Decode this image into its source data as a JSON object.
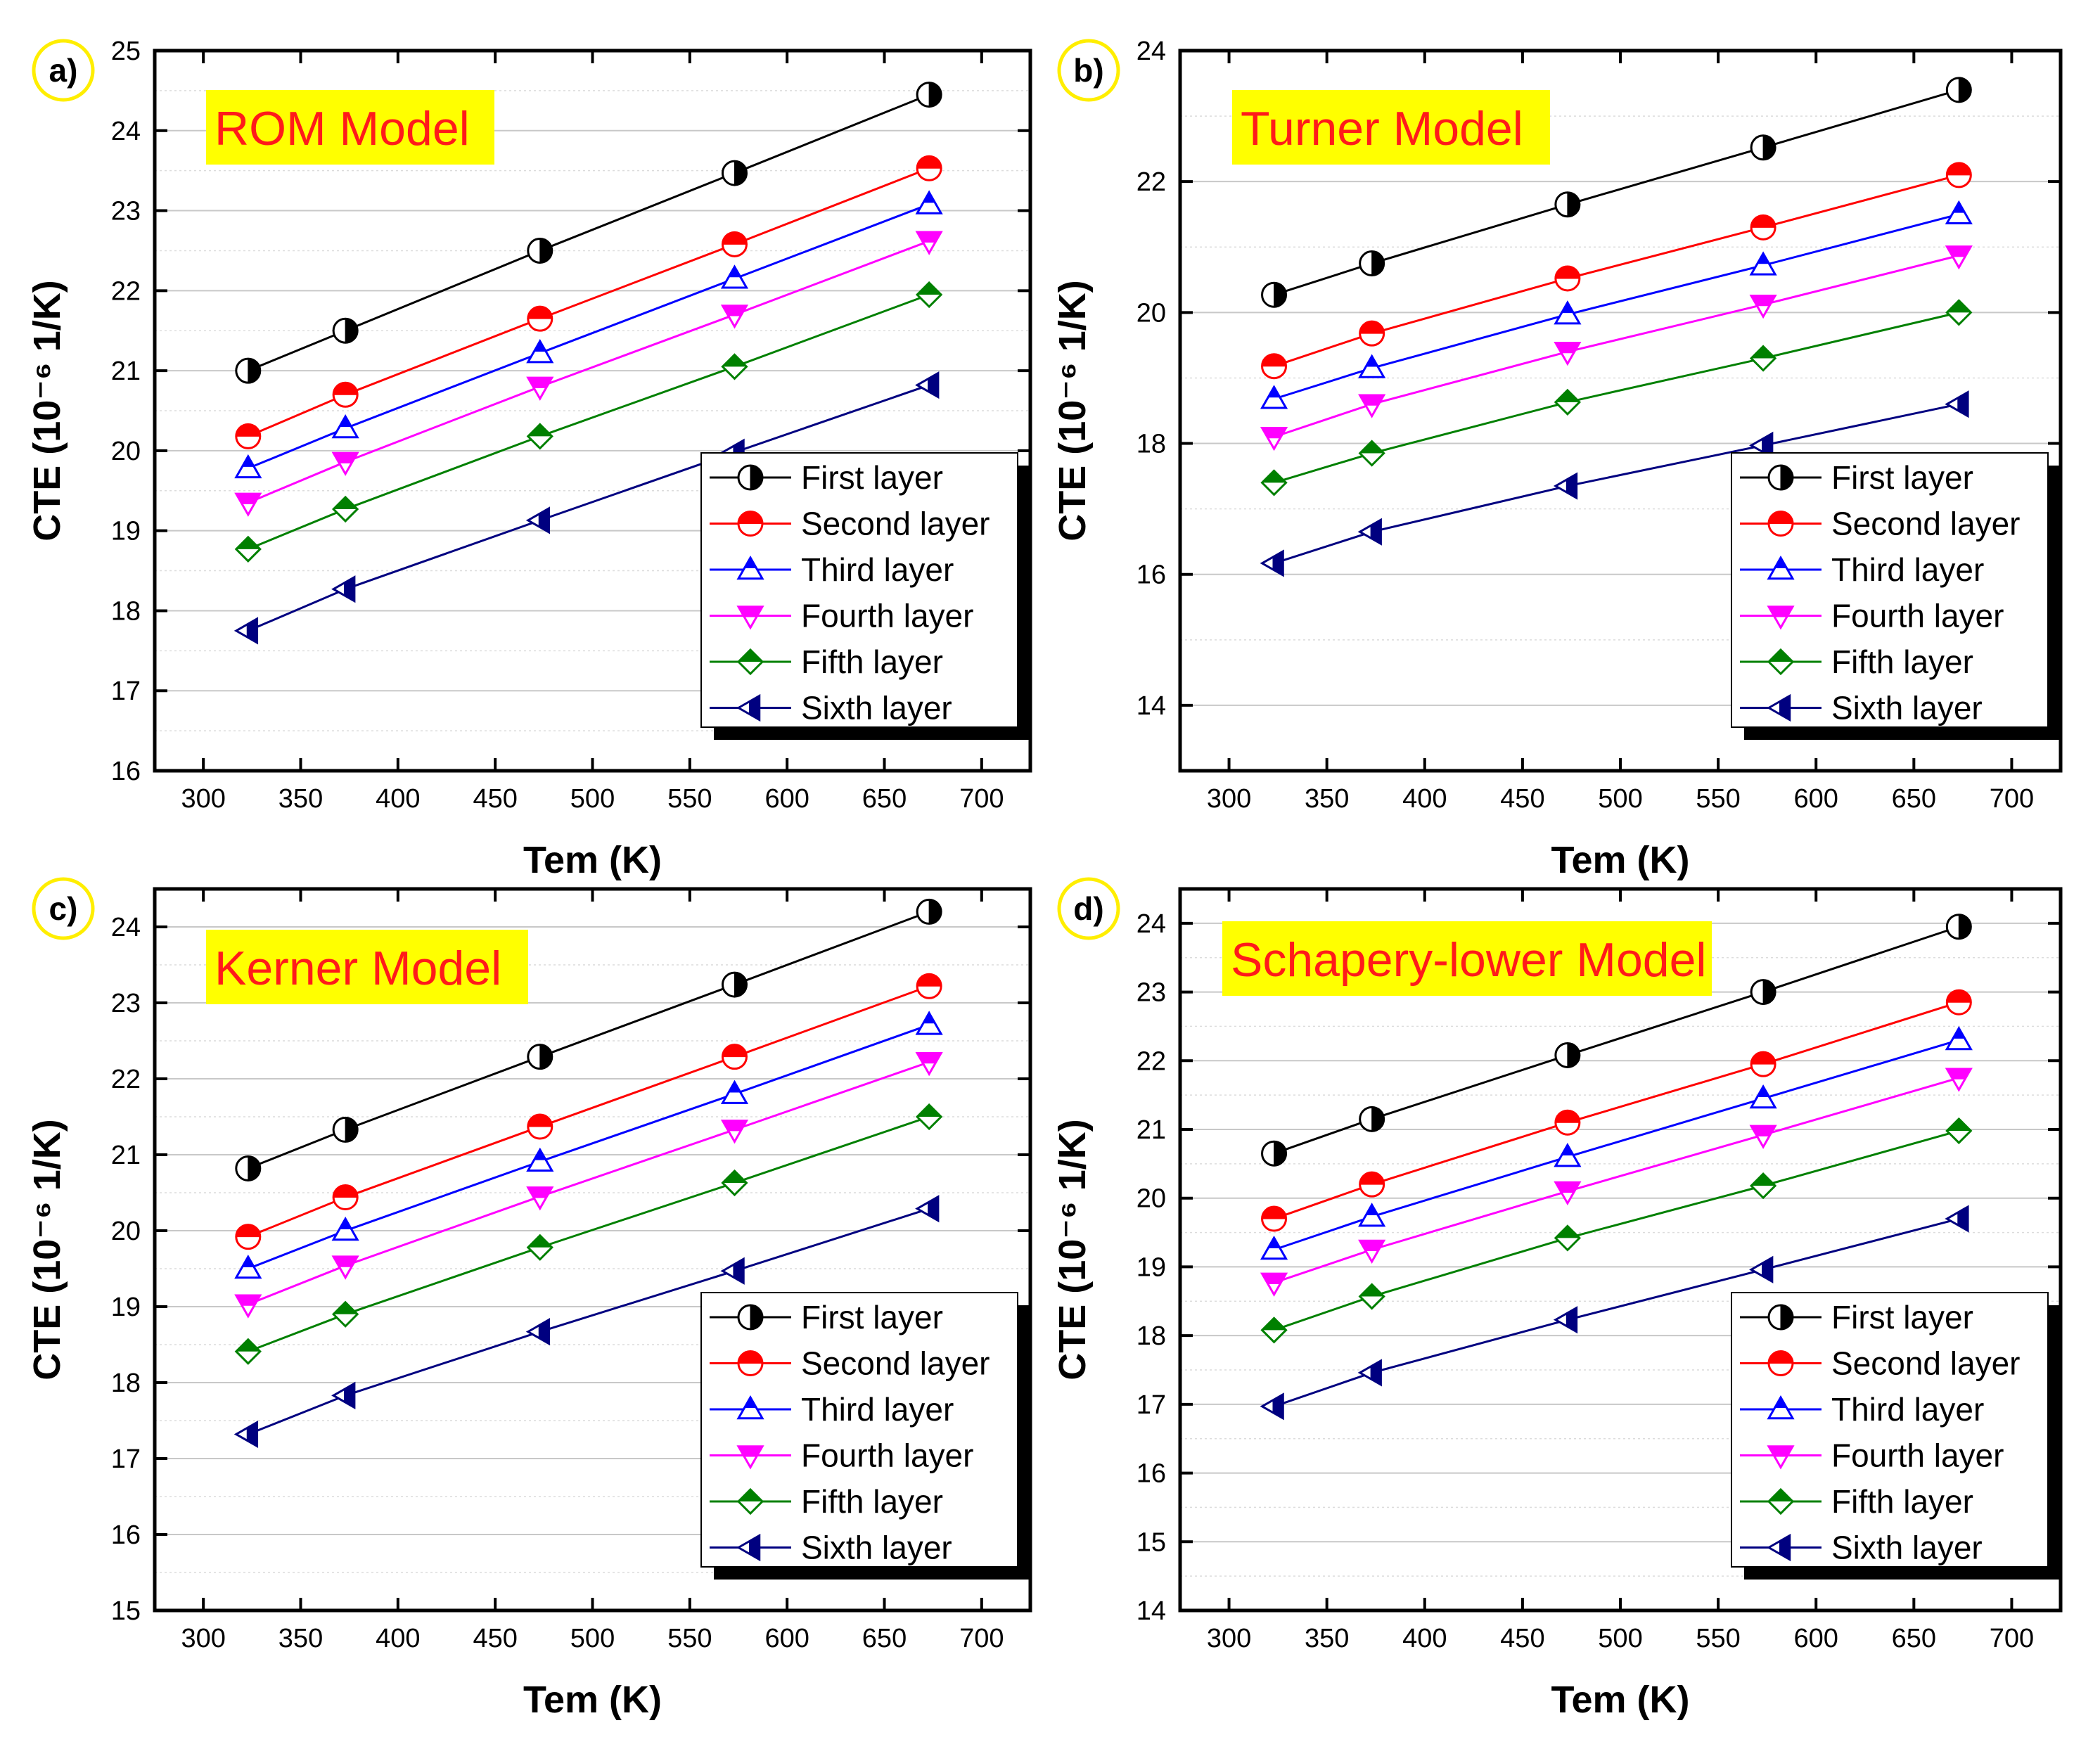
{
  "colors": {
    "First layer": "#000000",
    "Second layer": "#ff0000",
    "Third layer": "#0000ff",
    "Fourth layer": "#ff00ff",
    "Fifth layer": "#008000",
    "Sixth layer": "#000080",
    "title_bg": "#ffff00",
    "title_text": "#ff1a1a",
    "label_ring": "#ffee00",
    "grid": "#c8c8c8"
  },
  "chart_data": [
    {
      "type": "line",
      "panel_label": "a)",
      "title": "ROM Model",
      "xlabel": "Tem (K)",
      "ylabel": "CTE (10⁻⁶ 1/K)",
      "xlim": [
        275,
        725
      ],
      "ylim": [
        16,
        25
      ],
      "xticks": [
        300,
        350,
        400,
        450,
        500,
        550,
        600,
        650,
        700
      ],
      "yticks": [
        16,
        17,
        18,
        19,
        20,
        21,
        22,
        23,
        24,
        25
      ],
      "x": [
        323,
        373,
        473,
        573,
        673
      ],
      "legend_position": "bottom-right",
      "series": [
        {
          "name": "First layer",
          "marker": "half-circle-right",
          "values": [
            21.0,
            21.5,
            22.5,
            23.47,
            24.45
          ]
        },
        {
          "name": "Second layer",
          "marker": "half-circle-top",
          "values": [
            20.18,
            20.7,
            21.65,
            22.58,
            23.53
          ]
        },
        {
          "name": "Third layer",
          "marker": "triangle-up",
          "values": [
            19.78,
            20.28,
            21.22,
            22.15,
            23.08
          ]
        },
        {
          "name": "Fourth layer",
          "marker": "triangle-down",
          "values": [
            19.35,
            19.86,
            20.8,
            21.7,
            22.62
          ]
        },
        {
          "name": "Fifth layer",
          "marker": "diamond",
          "values": [
            18.77,
            19.27,
            20.18,
            21.05,
            21.95
          ]
        },
        {
          "name": "Sixth layer",
          "marker": "triangle-left",
          "values": [
            17.75,
            18.27,
            19.13,
            19.98,
            20.82
          ]
        }
      ]
    },
    {
      "type": "line",
      "panel_label": "b)",
      "title": "Turner Model",
      "xlabel": "Tem (K)",
      "ylabel": "CTE (10⁻⁶ 1/K)",
      "xlim": [
        275,
        725
      ],
      "ylim": [
        13,
        24
      ],
      "xticks": [
        300,
        350,
        400,
        450,
        500,
        550,
        600,
        650,
        700
      ],
      "yticks": [
        14,
        16,
        18,
        20,
        22,
        24
      ],
      "x": [
        323,
        373,
        473,
        573,
        673
      ],
      "legend_position": "bottom-right",
      "series": [
        {
          "name": "First layer",
          "marker": "half-circle-right",
          "values": [
            20.27,
            20.75,
            21.65,
            22.52,
            23.4
          ]
        },
        {
          "name": "Second layer",
          "marker": "half-circle-top",
          "values": [
            19.18,
            19.68,
            20.52,
            21.3,
            22.1
          ]
        },
        {
          "name": "Third layer",
          "marker": "triangle-up",
          "values": [
            18.68,
            19.15,
            19.97,
            20.72,
            21.5
          ]
        },
        {
          "name": "Fourth layer",
          "marker": "triangle-down",
          "values": [
            18.1,
            18.6,
            19.4,
            20.12,
            20.87
          ]
        },
        {
          "name": "Fifth layer",
          "marker": "diamond",
          "values": [
            17.4,
            17.85,
            18.63,
            19.3,
            20.0
          ]
        },
        {
          "name": "Sixth layer",
          "marker": "triangle-left",
          "values": [
            16.17,
            16.65,
            17.35,
            17.97,
            18.6
          ]
        }
      ]
    },
    {
      "type": "line",
      "panel_label": "c)",
      "title": "Kerner Model",
      "xlabel": "Tem (K)",
      "ylabel": "CTE (10⁻⁶ 1/K)",
      "xlim": [
        275,
        725
      ],
      "ylim": [
        15,
        24.5
      ],
      "xticks": [
        300,
        350,
        400,
        450,
        500,
        550,
        600,
        650,
        700
      ],
      "yticks": [
        15,
        16,
        17,
        18,
        19,
        20,
        21,
        22,
        23,
        24
      ],
      "x": [
        323,
        373,
        473,
        573,
        673
      ],
      "legend_position": "bottom-right",
      "series": [
        {
          "name": "First layer",
          "marker": "half-circle-right",
          "values": [
            20.82,
            21.33,
            22.29,
            23.24,
            24.2
          ]
        },
        {
          "name": "Second layer",
          "marker": "half-circle-top",
          "values": [
            19.92,
            20.44,
            21.37,
            22.29,
            23.22
          ]
        },
        {
          "name": "Third layer",
          "marker": "triangle-up",
          "values": [
            19.5,
            20.0,
            20.91,
            21.8,
            22.71
          ]
        },
        {
          "name": "Fourth layer",
          "marker": "triangle-down",
          "values": [
            19.03,
            19.54,
            20.45,
            21.33,
            22.22
          ]
        },
        {
          "name": "Fifth layer",
          "marker": "diamond",
          "values": [
            18.41,
            18.9,
            19.78,
            20.63,
            21.5
          ]
        },
        {
          "name": "Sixth layer",
          "marker": "triangle-left",
          "values": [
            17.32,
            17.83,
            18.67,
            19.47,
            20.29
          ]
        }
      ]
    },
    {
      "type": "line",
      "panel_label": "d)",
      "title": "Schapery-lower Model",
      "xlabel": "Tem (K)",
      "ylabel": "CTE (10⁻⁶ 1/K)",
      "xlim": [
        275,
        725
      ],
      "ylim": [
        14,
        24.5
      ],
      "xticks": [
        300,
        350,
        400,
        450,
        500,
        550,
        600,
        650,
        700
      ],
      "yticks": [
        14,
        15,
        16,
        17,
        18,
        19,
        20,
        21,
        22,
        23,
        24
      ],
      "x": [
        323,
        373,
        473,
        573,
        673
      ],
      "legend_position": "bottom-right",
      "series": [
        {
          "name": "First layer",
          "marker": "half-circle-right",
          "values": [
            20.65,
            21.15,
            22.08,
            23.0,
            23.95
          ]
        },
        {
          "name": "Second layer",
          "marker": "half-circle-top",
          "values": [
            19.7,
            20.2,
            21.1,
            21.95,
            22.85
          ]
        },
        {
          "name": "Third layer",
          "marker": "triangle-up",
          "values": [
            19.25,
            19.73,
            20.6,
            21.45,
            22.3
          ]
        },
        {
          "name": "Fourth layer",
          "marker": "triangle-down",
          "values": [
            18.77,
            19.25,
            20.1,
            20.92,
            21.75
          ]
        },
        {
          "name": "Fifth layer",
          "marker": "diamond",
          "values": [
            18.08,
            18.57,
            19.42,
            20.18,
            20.98
          ]
        },
        {
          "name": "Sixth layer",
          "marker": "triangle-left",
          "values": [
            16.97,
            17.46,
            18.23,
            18.96,
            19.7
          ]
        }
      ]
    }
  ]
}
